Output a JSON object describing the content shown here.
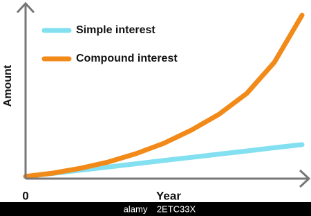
{
  "chart_data": {
    "type": "line",
    "x_label": "Year",
    "y_label": "Amount",
    "x": [
      0,
      1,
      2,
      3,
      4,
      5,
      6,
      7,
      8,
      9,
      10
    ],
    "xlim": [
      0,
      10
    ],
    "ylim": [
      0,
      100
    ],
    "xticks": [
      0
    ],
    "legend": "top-left",
    "series": [
      {
        "name": "Simple interest",
        "color": "#82e0f0",
        "values": [
          1.3,
          3.2,
          5.2,
          7.1,
          9.1,
          11.1,
          13.0,
          15.0,
          16.9,
          18.9,
          20.8
        ]
      },
      {
        "name": "Compound interest",
        "color": "#f28a1a",
        "values": [
          1.3,
          3.4,
          6.4,
          10.2,
          15.3,
          21.6,
          29.7,
          39.4,
          52.1,
          71.2,
          100
        ]
      }
    ],
    "watermark": [
      "alamy",
      "2ETC33X"
    ]
  }
}
